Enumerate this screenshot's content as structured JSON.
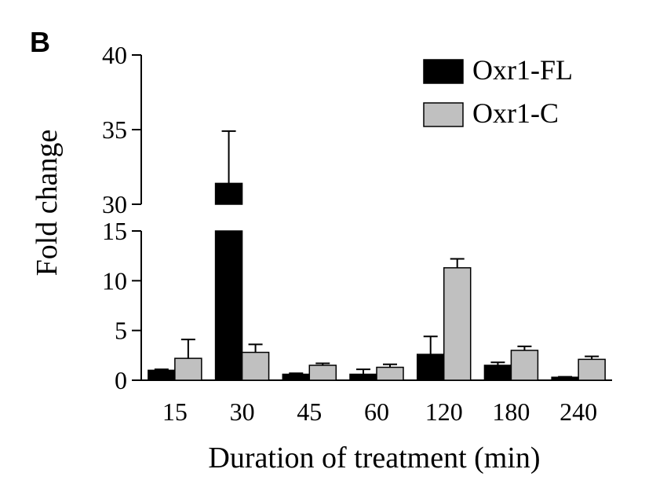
{
  "chart_data": {
    "type": "bar",
    "panel_label": "B",
    "title": "",
    "xlabel": "Duration of treatment (min)",
    "ylabel": "Fold change",
    "categories": [
      "15",
      "30",
      "45",
      "60",
      "120",
      "180",
      "240"
    ],
    "y_axis": {
      "broken": true,
      "lower_range": [
        0,
        15
      ],
      "upper_range": [
        30,
        40
      ],
      "ticks_lower": [
        "0",
        "5",
        "10",
        "15"
      ],
      "ticks_upper": [
        "30",
        "35",
        "40"
      ]
    },
    "legend_position": "top-right",
    "series": [
      {
        "name": "Oxr1-FL",
        "color": "#000000",
        "values": [
          1.0,
          31.4,
          0.6,
          0.6,
          2.6,
          1.5,
          0.3
        ],
        "errors": [
          0.1,
          3.5,
          0.1,
          0.5,
          1.8,
          0.3,
          0.05
        ]
      },
      {
        "name": "Oxr1-C",
        "color": "#c0c0c0",
        "values": [
          2.2,
          2.8,
          1.5,
          1.3,
          11.3,
          3.0,
          2.1
        ],
        "errors": [
          1.9,
          0.8,
          0.2,
          0.3,
          0.9,
          0.4,
          0.3
        ]
      }
    ]
  }
}
